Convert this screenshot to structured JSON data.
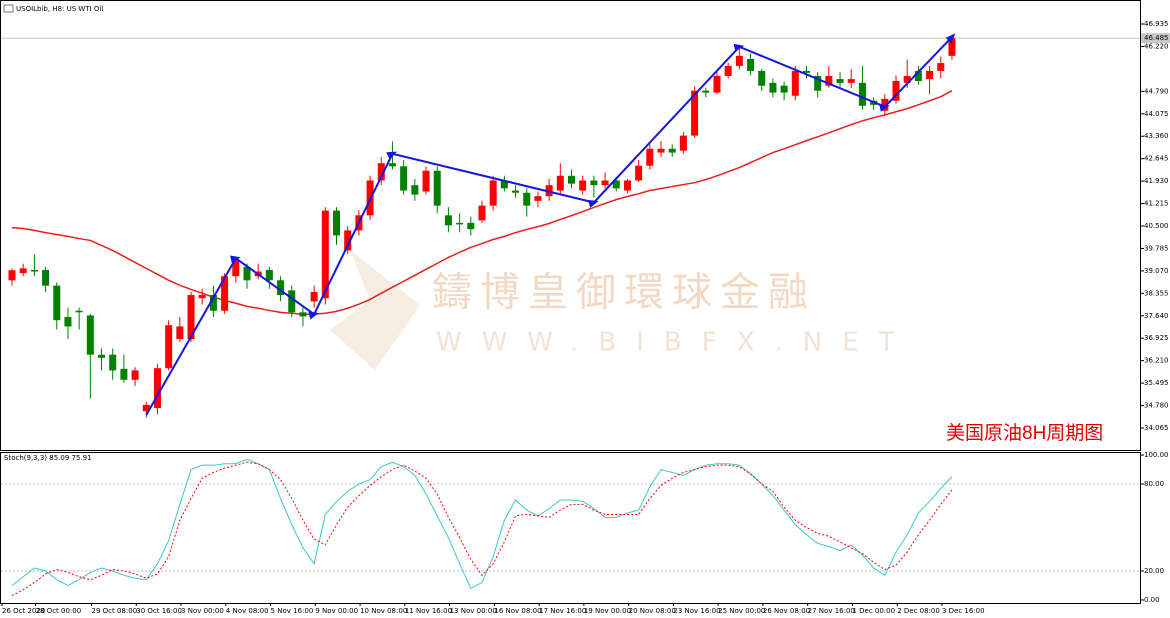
{
  "chart_data": [
    {
      "type": "candlestick",
      "title": "USOILbib, H8: US WTI Oil",
      "categories": [
        "26 Oct 2020",
        null,
        null,
        "28 Oct 00:00",
        null,
        null,
        null,
        null,
        "29 Oct 08:00",
        null,
        null,
        null,
        "30 Oct 16:00",
        null,
        null,
        null,
        "3 Nov 00:00",
        null,
        null,
        null,
        "4 Nov 08:00",
        null,
        null,
        null,
        "5 Nov 16:00",
        null,
        null,
        null,
        "9 Nov 00:00",
        null,
        null,
        null,
        "10 Nov 08:00",
        null,
        null,
        null,
        "11 Nov 16:00",
        null,
        null,
        null,
        "13 Nov 00:00",
        null,
        null,
        null,
        "16 Nov 08:00",
        null,
        null,
        null,
        "17 Nov 16:00",
        null,
        null,
        null,
        "19 Nov 00:00",
        null,
        null,
        null,
        "20 Nov 08:00",
        null,
        null,
        null,
        "23 Nov 16:00",
        null,
        null,
        null,
        "25 Nov 00:00",
        null,
        null,
        null,
        "26 Nov 08:00",
        null,
        null,
        null,
        "27 Nov 16:00",
        null,
        null,
        null,
        "1 Dec 00:00",
        null,
        null,
        null,
        "2 Dec 08:00",
        null,
        null,
        null,
        "3 Dec 16:00"
      ],
      "open": [
        38.77,
        39.0,
        39.1,
        39.1,
        38.6,
        37.6,
        37.8,
        37.65,
        36.4,
        36.4,
        35.95,
        35.6,
        34.6,
        34.7,
        35.97,
        36.9,
        36.9,
        38.2,
        38.3,
        37.8,
        38.9,
        39.2,
        38.9,
        39.1,
        38.77,
        38.45,
        37.75,
        38.1,
        38.2,
        40.99,
        39.72,
        40.36,
        40.84,
        41.95,
        42.5,
        42.4,
        41.8,
        41.6,
        42.26,
        40.84,
        40.6,
        40.6,
        40.68,
        41.15,
        41.95,
        41.63,
        41.56,
        41.3,
        41.45,
        41.63,
        42.1,
        41.63,
        41.95,
        41.8,
        41.95,
        41.63,
        41.95,
        42.42,
        42.84,
        42.96,
        42.9,
        43.38,
        44.81,
        44.75,
        45.28,
        45.6,
        45.82,
        45.44,
        45.06,
        44.97,
        44.65,
        45.44,
        45.28,
        44.97,
        45.18,
        45.06,
        45.06,
        44.49,
        44.17,
        44.49,
        45.06,
        45.44,
        45.18,
        45.44,
        45.92
      ],
      "high": [
        39.15,
        39.3,
        39.6,
        39.2,
        38.7,
        37.9,
        37.9,
        37.7,
        36.6,
        36.6,
        36.4,
        36.0,
        34.9,
        36.1,
        37.5,
        37.6,
        38.4,
        38.5,
        38.6,
        39.0,
        39.5,
        39.3,
        39.3,
        39.2,
        38.9,
        38.6,
        37.9,
        38.6,
        41.1,
        41.1,
        40.5,
        41.0,
        42.1,
        42.7,
        43.2,
        42.6,
        42.0,
        42.4,
        42.4,
        41.1,
        40.9,
        40.8,
        41.3,
        42.1,
        42.1,
        41.8,
        41.7,
        41.6,
        42.0,
        42.5,
        42.3,
        42.1,
        42.1,
        42.2,
        42.0,
        42.0,
        42.6,
        43.1,
        43.2,
        43.1,
        43.5,
        44.95,
        44.9,
        45.4,
        45.7,
        46.2,
        46.0,
        45.5,
        45.2,
        45.1,
        45.6,
        45.6,
        45.4,
        45.6,
        45.4,
        45.5,
        45.6,
        44.6,
        44.7,
        45.3,
        45.8,
        45.6,
        45.6,
        45.9,
        46.6
      ],
      "low": [
        38.6,
        38.9,
        38.9,
        38.4,
        37.2,
        36.9,
        37.2,
        35.0,
        35.9,
        35.6,
        35.5,
        35.4,
        34.4,
        34.5,
        35.9,
        36.8,
        36.8,
        38.0,
        37.6,
        37.7,
        38.7,
        38.5,
        38.8,
        38.5,
        38.1,
        37.6,
        37.3,
        37.9,
        38.0,
        39.9,
        39.6,
        40.2,
        40.7,
        41.8,
        42.3,
        41.5,
        41.3,
        41.5,
        40.9,
        40.3,
        40.3,
        40.2,
        40.6,
        41.0,
        41.6,
        41.4,
        40.8,
        41.1,
        41.3,
        41.5,
        41.7,
        41.5,
        41.4,
        41.7,
        41.6,
        41.55,
        41.9,
        42.3,
        42.7,
        42.7,
        42.8,
        43.3,
        44.6,
        44.7,
        45.2,
        45.5,
        45.3,
        44.8,
        44.6,
        44.5,
        44.5,
        45.2,
        44.6,
        44.9,
        44.9,
        44.9,
        44.2,
        44.2,
        44.0,
        44.4,
        44.9,
        45.0,
        44.7,
        45.2,
        45.8
      ],
      "close": [
        39.09,
        39.15,
        39.05,
        38.6,
        37.5,
        37.3,
        37.75,
        36.4,
        36.3,
        35.9,
        35.6,
        35.9,
        34.8,
        35.97,
        37.34,
        37.3,
        38.3,
        38.3,
        37.8,
        38.9,
        39.4,
        38.77,
        39.05,
        38.77,
        38.3,
        37.75,
        37.62,
        38.4,
        40.99,
        40.2,
        40.36,
        40.84,
        41.95,
        42.5,
        42.4,
        41.63,
        41.5,
        42.26,
        41.15,
        40.52,
        40.55,
        40.4,
        41.15,
        41.95,
        41.7,
        41.56,
        41.15,
        41.45,
        41.8,
        42.1,
        41.85,
        41.95,
        41.8,
        41.95,
        41.7,
        41.95,
        42.42,
        42.96,
        42.96,
        42.84,
        43.38,
        44.81,
        44.75,
        45.28,
        45.6,
        45.92,
        45.44,
        44.97,
        44.75,
        44.75,
        45.44,
        45.38,
        44.81,
        45.28,
        45.06,
        45.18,
        44.33,
        44.36,
        44.55,
        45.12,
        45.28,
        45.12,
        45.44,
        45.69,
        46.485
      ],
      "up_color": "#ff0000",
      "down_color": "#008000",
      "lines": [
        {
          "color": "#e8201a",
          "values": [
            40.45,
            40.42,
            40.36,
            40.29,
            40.23,
            40.17,
            40.1,
            40.04,
            39.88,
            39.72,
            39.53,
            39.34,
            39.15,
            38.96,
            38.77,
            38.61,
            38.48,
            38.36,
            38.23,
            38.13,
            38.04,
            37.94,
            37.88,
            37.81,
            37.75,
            37.72,
            37.69,
            37.69,
            37.72,
            37.78,
            37.88,
            38.01,
            38.16,
            38.36,
            38.55,
            38.74,
            38.93,
            39.12,
            39.31,
            39.5,
            39.66,
            39.82,
            39.94,
            40.07,
            40.17,
            40.29,
            40.39,
            40.48,
            40.58,
            40.71,
            40.83,
            40.96,
            41.09,
            41.22,
            41.34,
            41.44,
            41.53,
            41.63,
            41.69,
            41.76,
            41.82,
            41.88,
            41.98,
            42.1,
            42.23,
            42.36,
            42.52,
            42.68,
            42.84,
            42.96,
            43.09,
            43.22,
            43.34,
            43.47,
            43.6,
            43.73,
            43.85,
            43.95,
            44.04,
            44.14,
            44.24,
            44.36,
            44.49,
            44.62,
            44.81
          ]
        }
      ],
      "zigzag": {
        "color": "#1515e0",
        "x": [
          12,
          20,
          27,
          34,
          52,
          65,
          78,
          84
        ],
        "y": [
          34.48,
          39.47,
          37.69,
          42.8,
          41.25,
          46.21,
          44.3,
          46.52
        ]
      },
      "current_price": {
        "value": 46.485,
        "label": "46.485"
      },
      "ylim": [
        33.364,
        47.636
      ],
      "yticks": [
        46.935,
        {
          "value": 46.22,
          "label": "46.220"
        },
        46.505,
        {
          "value": 44.79,
          "label": "44.790"
        },
        44.075,
        {
          "value": 43.36,
          "label": "43.360"
        },
        42.645,
        {
          "value": 41.93,
          "label": "41.930"
        },
        41.215,
        {
          "value": 40.5,
          "label": "40.500"
        },
        39.785,
        {
          "value": 39.07,
          "label": "39.070"
        },
        38.355,
        {
          "value": 37.64,
          "label": "37.640"
        },
        36.925,
        {
          "value": 36.21,
          "label": "36.210"
        },
        35.495,
        {
          "value": 34.78,
          "label": "34.780"
        },
        34.065
      ],
      "watermark": [
        "鑄博皇御環球金融",
        "WWW.BIBFX.NET"
      ],
      "annotation": "美国原油8H周期图"
    },
    {
      "type": "line",
      "title": "Stoch(9,3,3)",
      "series": [
        {
          "color": "#3cc8c8",
          "values": [
            10,
            16,
            22,
            20,
            14,
            10,
            14,
            19,
            22,
            20,
            17,
            15,
            14,
            25,
            41,
            66,
            90,
            93,
            93,
            94,
            94,
            97,
            94,
            90,
            70,
            52,
            36,
            25,
            59,
            68,
            75,
            80,
            83,
            92,
            95,
            92,
            86,
            73,
            58,
            43,
            25,
            8,
            12,
            30,
            55,
            69,
            62,
            58,
            63,
            69,
            69,
            68,
            63,
            57,
            57,
            60,
            62,
            78,
            90,
            88,
            86,
            90,
            93,
            94,
            94,
            93,
            87,
            80,
            72,
            62,
            52,
            45,
            39,
            37,
            34,
            38,
            31,
            22,
            17,
            33,
            45,
            60,
            68,
            77,
            85.09
          ]
        },
        {
          "color": "#ff0000",
          "dash": true,
          "values": [
            3,
            7,
            12,
            18,
            21,
            19,
            16,
            14,
            17,
            21,
            20,
            18,
            15,
            18,
            30,
            55,
            70,
            84,
            88,
            91,
            93,
            95,
            94,
            90,
            83,
            70,
            55,
            42,
            38,
            52,
            64,
            72,
            79,
            85,
            90,
            93,
            89,
            84,
            73,
            57,
            43,
            28,
            17,
            25,
            40,
            58,
            59,
            58,
            57,
            62,
            66,
            66,
            62,
            59,
            59,
            59,
            59,
            70,
            79,
            84,
            88,
            90,
            92,
            93,
            93,
            92,
            87,
            80,
            75,
            64,
            55,
            50,
            46,
            44,
            40,
            36,
            32,
            26,
            21,
            24,
            33,
            45,
            55,
            66,
            75.91
          ]
        }
      ],
      "ylim": [
        -2.1,
        102.1
      ],
      "yticks": [
        {
          "value": 100,
          "label": "100.00"
        },
        {
          "value": 80,
          "label": "80.00"
        },
        {
          "value": 20,
          "label": "20.00"
        },
        {
          "value": 0,
          "label": "0.00"
        }
      ]
    }
  ]
}
